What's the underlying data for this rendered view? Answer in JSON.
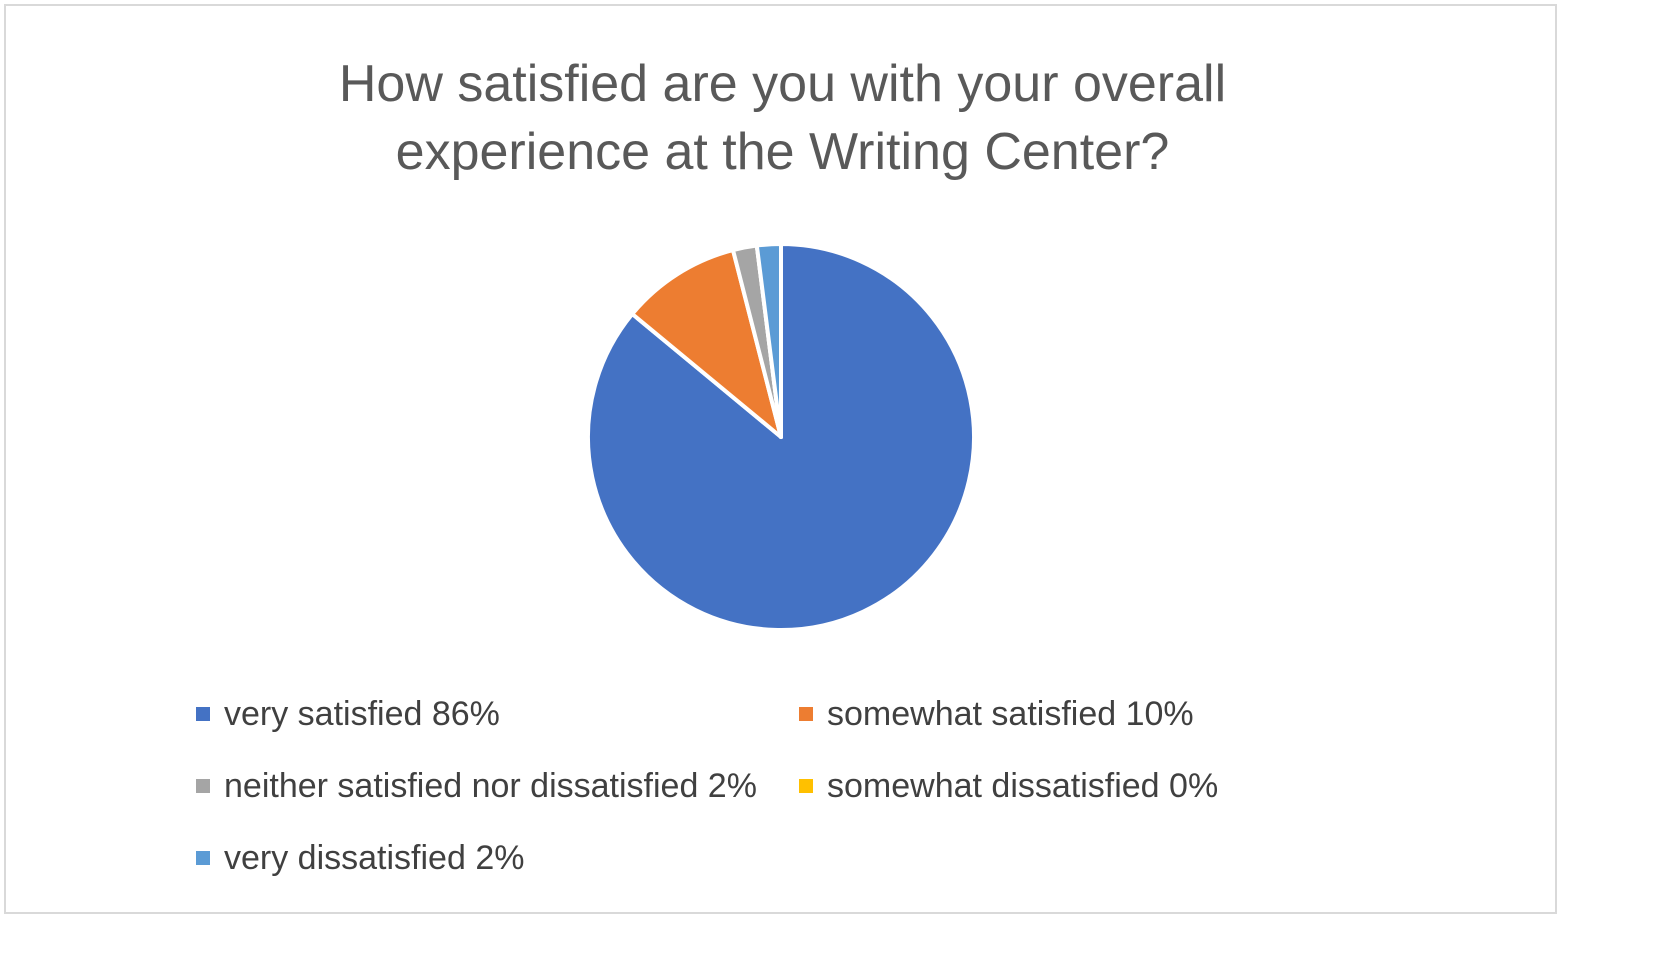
{
  "chart_data": {
    "type": "pie",
    "title_lines": [
      "How satisfied are you with your overall",
      "experience at the Writing Center?"
    ],
    "legend_position": "bottom",
    "categories": [
      "very satisfied 86%",
      "somewhat satisfied 10%",
      "neither satisfied nor dissatisfied 2%",
      "somewhat dissatisfied 0%",
      "very dissatisfied 2%"
    ],
    "values": [
      86,
      10,
      2,
      0,
      2
    ],
    "colors": [
      "#4472C4",
      "#ED7D31",
      "#A5A5A5",
      "#FFC000",
      "#5B9BD5"
    ]
  }
}
